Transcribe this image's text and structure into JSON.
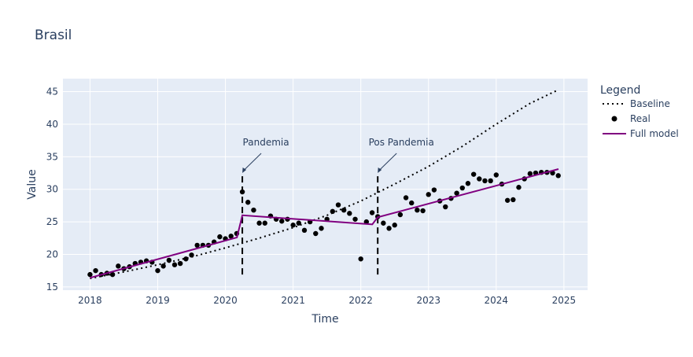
{
  "chart_data": {
    "type": "line",
    "title": "Brasil",
    "xlabel": "Time",
    "ylabel": "Value",
    "x_tick_labels": [
      "2018",
      "2019",
      "2020",
      "2021",
      "2022",
      "2023",
      "2024",
      "2025"
    ],
    "y_tick_labels": [
      "15",
      "20",
      "25",
      "30",
      "35",
      "40",
      "45"
    ],
    "xlim": [
      2017.6,
      2025.35
    ],
    "ylim": [
      14.5,
      47
    ],
    "grid": true,
    "legend": {
      "title": "Legend",
      "placement": "right",
      "entries": [
        "Baseline",
        "Real",
        "Full model"
      ]
    },
    "series": [
      {
        "name": "Baseline",
        "kind": "line",
        "dash": "dot",
        "color": "#000000",
        "x": [
          2018.0,
          2018.5,
          2019.0,
          2019.5,
          2020.0,
          2020.5,
          2021.0,
          2021.5,
          2022.0,
          2022.5,
          2023.0,
          2023.5,
          2024.0,
          2024.5,
          2024.92
        ],
        "y": [
          16.3,
          17.3,
          18.4,
          19.6,
          21.0,
          22.5,
          24.1,
          26.0,
          28.2,
          30.8,
          33.5,
          36.6,
          40.0,
          43.2,
          45.3
        ]
      },
      {
        "name": "Real",
        "kind": "markers",
        "color": "#000000",
        "x": [
          2018.0,
          2018.083,
          2018.167,
          2018.25,
          2018.333,
          2018.417,
          2018.5,
          2018.583,
          2018.667,
          2018.75,
          2018.833,
          2018.917,
          2019.0,
          2019.083,
          2019.167,
          2019.25,
          2019.333,
          2019.417,
          2019.5,
          2019.583,
          2019.667,
          2019.75,
          2019.833,
          2019.917,
          2020.0,
          2020.083,
          2020.167,
          2020.25,
          2020.333,
          2020.417,
          2020.5,
          2020.583,
          2020.667,
          2020.75,
          2020.833,
          2020.917,
          2021.0,
          2021.083,
          2021.167,
          2021.25,
          2021.333,
          2021.417,
          2021.5,
          2021.583,
          2021.667,
          2021.75,
          2021.833,
          2021.917,
          2022.0,
          2022.083,
          2022.167,
          2022.25,
          2022.333,
          2022.417,
          2022.5,
          2022.583,
          2022.667,
          2022.75,
          2022.833,
          2022.917,
          2023.0,
          2023.083,
          2023.167,
          2023.25,
          2023.333,
          2023.417,
          2023.5,
          2023.583,
          2023.667,
          2023.75,
          2023.833,
          2023.917,
          2024.0,
          2024.083,
          2024.167,
          2024.25,
          2024.333,
          2024.417,
          2024.5,
          2024.583,
          2024.667,
          2024.75,
          2024.833,
          2024.917
        ],
        "y": [
          16.9,
          17.5,
          16.9,
          17.1,
          16.9,
          18.2,
          17.8,
          18.1,
          18.6,
          18.8,
          19.0,
          18.8,
          17.5,
          18.2,
          19.1,
          18.4,
          18.6,
          19.3,
          19.9,
          21.4,
          21.4,
          21.4,
          21.9,
          22.7,
          22.4,
          22.8,
          23.2,
          29.6,
          28.0,
          26.8,
          24.8,
          24.8,
          25.9,
          25.4,
          25.1,
          25.4,
          24.5,
          24.8,
          23.7,
          25.0,
          23.2,
          24.0,
          25.4,
          26.6,
          27.6,
          26.8,
          26.3,
          25.4,
          19.3,
          25.0,
          26.4,
          25.8,
          24.8,
          24.0,
          24.5,
          26.1,
          28.7,
          27.9,
          26.8,
          26.7,
          29.2,
          29.9,
          28.2,
          27.3,
          28.6,
          29.4,
          30.2,
          30.9,
          32.3,
          31.6,
          31.3,
          31.3,
          32.2,
          30.8,
          28.3,
          28.4,
          30.3,
          31.6,
          32.4,
          32.5,
          32.6,
          32.6,
          32.5,
          32.1
        ]
      },
      {
        "name": "Full model",
        "kind": "line",
        "dash": "solid",
        "color": "#800080",
        "x": [
          2018.0,
          2020.17,
          2020.25,
          2022.17,
          2022.25,
          2024.92
        ],
        "y": [
          16.4,
          22.6,
          26.0,
          24.6,
          25.7,
          33.1
        ]
      }
    ],
    "shapes": [
      {
        "type": "vline",
        "x": 2020.25,
        "y0": 16.9,
        "y1": 32.5,
        "dash": "dash",
        "color": "#000000"
      },
      {
        "type": "vline",
        "x": 2022.25,
        "y0": 16.9,
        "y1": 32.5,
        "dash": "dash",
        "color": "#000000"
      }
    ],
    "annotations": [
      {
        "text": "Pandemia",
        "x": 2020.25,
        "y": 32.5
      },
      {
        "text": "Pos Pandemia",
        "x": 2022.25,
        "y": 32.5
      }
    ]
  }
}
